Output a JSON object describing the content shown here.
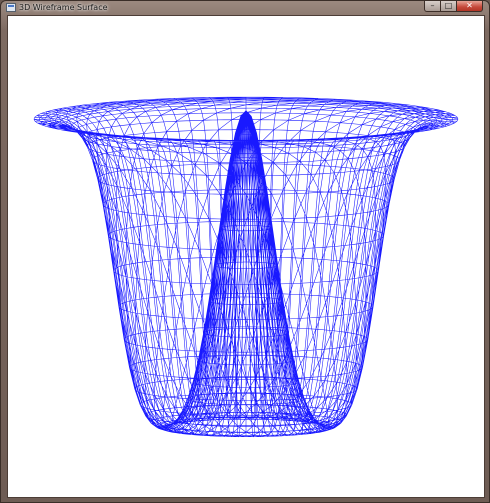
{
  "window": {
    "title": "3D Wireframe Surface",
    "app_icon": "window-app-icon",
    "buttons": {
      "minimize_glyph": "–",
      "maximize_glyph": "□",
      "close_glyph": "✕"
    }
  },
  "viewport": {
    "background": "#ffffff",
    "wire_color": "#0000ff",
    "surface": "radial ripple (Mexican hat) wireframe"
  }
}
